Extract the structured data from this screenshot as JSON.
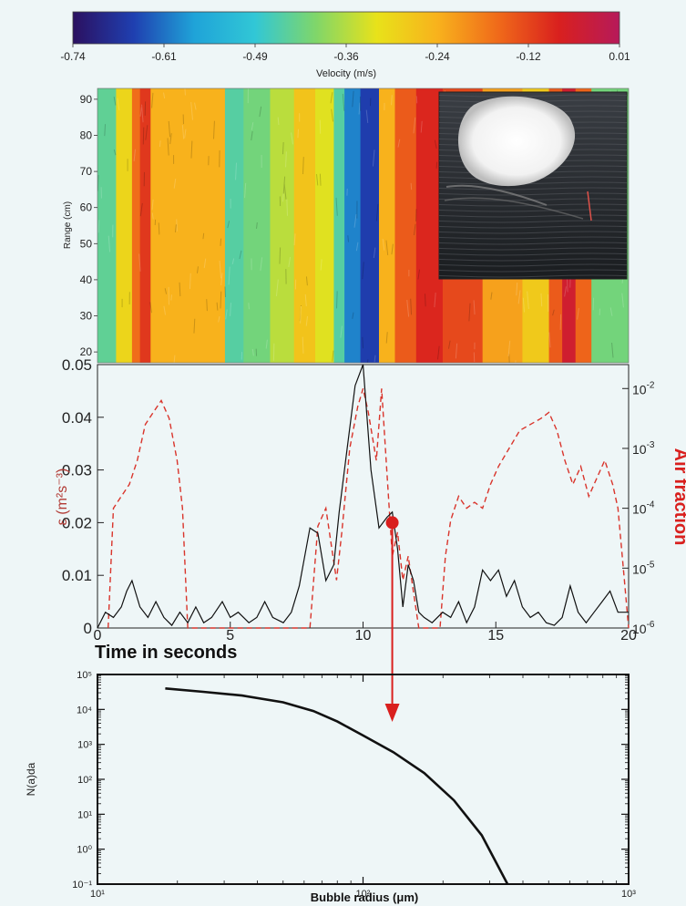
{
  "colorbar": {
    "title": "Velocity (m/s)",
    "tick_labels": [
      "-0.74",
      "-0.61",
      "-0.49",
      "-0.36",
      "-0.24",
      "-0.12",
      "0.01"
    ],
    "colors": [
      "#2b1060",
      "#1f3fb0",
      "#1fa3d8",
      "#31c7d6",
      "#7fd66a",
      "#e8e21a",
      "#f8b21c",
      "#f06a1a",
      "#d9201e",
      "#b61a5a"
    ]
  },
  "chart_data": [
    {
      "type": "heatmap",
      "title": "",
      "colorbar_label": "Velocity (m/s)",
      "xlabel": "",
      "ylabel": "Range (cm)",
      "xlim": [
        0,
        20
      ],
      "ylim": [
        17,
        93
      ],
      "y_ticks": [
        20,
        30,
        40,
        50,
        60,
        70,
        80,
        90
      ],
      "x_band_edges": [
        0,
        0.7,
        1.3,
        1.6,
        2.0,
        2.5,
        4.8,
        5.5,
        6.5,
        7.4,
        8.2,
        8.9,
        9.3,
        9.9,
        10.6,
        11.2,
        12.0,
        13.0,
        14.5,
        16.0,
        17.0,
        17.5,
        18.0,
        18.6,
        20.0
      ],
      "x_band_velocity": [
        -0.44,
        -0.3,
        -0.16,
        -0.1,
        -0.24,
        -0.24,
        -0.45,
        -0.42,
        -0.36,
        -0.27,
        -0.33,
        -0.45,
        -0.6,
        -0.66,
        -0.24,
        -0.14,
        -0.08,
        -0.12,
        -0.22,
        -0.28,
        -0.14,
        -0.05,
        -0.15,
        -0.42
      ],
      "inset": "photograph of breaking wave"
    },
    {
      "type": "line",
      "xlabel": "Time in seconds",
      "ylabel": "ε (m²s⁻³)",
      "y2label": "Air fraction",
      "xlim": [
        0,
        20
      ],
      "ylim": [
        0,
        0.05
      ],
      "y2lim_log10": [
        -6,
        -1.6
      ],
      "x_ticks": [
        0,
        5,
        10,
        15,
        20
      ],
      "y_ticks": [
        "0",
        "0.01",
        "0.02",
        "0.03",
        "0.04",
        "0.05"
      ],
      "y2_ticks": [
        -6,
        -5,
        -4,
        -3,
        -2
      ],
      "series": [
        {
          "color": "#111111",
          "dash": "solid",
          "axis": "left",
          "x": [
            0.0,
            0.3,
            0.6,
            0.9,
            1.1,
            1.3,
            1.6,
            1.9,
            2.2,
            2.5,
            2.8,
            3.1,
            3.4,
            3.7,
            4.0,
            4.3,
            4.7,
            5.0,
            5.3,
            5.7,
            6.0,
            6.3,
            6.6,
            7.0,
            7.3,
            7.6,
            8.0,
            8.3,
            8.6,
            8.9,
            9.1,
            9.4,
            9.7,
            10.0,
            10.3,
            10.6,
            10.9,
            11.1,
            11.3,
            11.5,
            11.7,
            11.9,
            12.1,
            12.3,
            12.6,
            13.0,
            13.3,
            13.6,
            13.9,
            14.2,
            14.5,
            14.8,
            15.1,
            15.4,
            15.7,
            16.0,
            16.3,
            16.6,
            16.9,
            17.2,
            17.5,
            17.8,
            18.1,
            18.4,
            18.7,
            19.0,
            19.3,
            19.6,
            20.0
          ],
          "y": [
            0.0,
            0.003,
            0.002,
            0.004,
            0.007,
            0.009,
            0.004,
            0.002,
            0.005,
            0.002,
            0.0005,
            0.003,
            0.001,
            0.004,
            0.001,
            0.002,
            0.005,
            0.002,
            0.003,
            0.001,
            0.002,
            0.005,
            0.002,
            0.001,
            0.003,
            0.008,
            0.019,
            0.018,
            0.009,
            0.012,
            0.022,
            0.034,
            0.046,
            0.05,
            0.03,
            0.019,
            0.021,
            0.022,
            0.015,
            0.004,
            0.012,
            0.009,
            0.003,
            0.002,
            0.001,
            0.003,
            0.002,
            0.005,
            0.001,
            0.004,
            0.011,
            0.009,
            0.011,
            0.006,
            0.009,
            0.004,
            0.002,
            0.003,
            0.001,
            0.0005,
            0.002,
            0.008,
            0.003,
            0.001,
            0.003,
            0.005,
            0.007,
            0.003,
            0.003
          ]
        },
        {
          "color": "#d9342b",
          "dash": "dashed",
          "axis": "right_log",
          "x": [
            0.4,
            0.6,
            0.9,
            1.2,
            1.5,
            1.8,
            2.1,
            2.4,
            2.7,
            3.0,
            3.2,
            3.4,
            8.0,
            8.3,
            8.6,
            8.8,
            9.0,
            9.2,
            9.5,
            9.8,
            10.0,
            10.2,
            10.5,
            10.7,
            10.9,
            11.1,
            11.3,
            11.5,
            11.7,
            11.9,
            12.1,
            12.9,
            13.1,
            13.3,
            13.6,
            13.9,
            14.2,
            14.5,
            14.8,
            15.1,
            15.5,
            15.9,
            16.3,
            16.7,
            17.0,
            17.3,
            17.6,
            17.9,
            18.2,
            18.5,
            18.8,
            19.1,
            19.4,
            19.6,
            19.8,
            20.0
          ],
          "log10_y": [
            -6.0,
            -4.0,
            -3.8,
            -3.6,
            -3.2,
            -2.6,
            -2.4,
            -2.2,
            -2.5,
            -3.2,
            -4.0,
            -6.0,
            -6.0,
            -4.3,
            -4.0,
            -4.6,
            -5.2,
            -4.4,
            -3.0,
            -2.3,
            -2.0,
            -2.4,
            -3.2,
            -2.0,
            -3.4,
            -4.8,
            -4.4,
            -5.2,
            -4.8,
            -5.4,
            -6.0,
            -6.0,
            -4.8,
            -4.2,
            -3.8,
            -4.0,
            -3.9,
            -4.0,
            -3.6,
            -3.3,
            -3.0,
            -2.7,
            -2.6,
            -2.5,
            -2.4,
            -2.7,
            -3.2,
            -3.6,
            -3.3,
            -3.8,
            -3.5,
            -3.2,
            -3.6,
            -4.0,
            -5.0,
            -6.0
          ]
        }
      ],
      "marker": {
        "x": 11.1,
        "y": 0.02,
        "color": "#d91e1e"
      }
    },
    {
      "type": "line",
      "xlabel": "Bubble radius (μm)",
      "ylabel": "N(a)da",
      "x_scale": "log",
      "y_scale": "log",
      "xlim": [
        10,
        1000
      ],
      "ylim": [
        0.1,
        100000
      ],
      "x_tick_labels": [
        "10¹",
        "10²",
        "10³"
      ],
      "y_tick_labels": [
        "10⁻¹",
        "10⁰",
        "10¹",
        "10²",
        "10³",
        "10⁴",
        "10⁵"
      ],
      "series": [
        {
          "color": "#111111",
          "x": [
            18,
            25,
            35,
            50,
            65,
            80,
            100,
            130,
            170,
            220,
            280,
            350
          ],
          "y": [
            40000,
            32000,
            25000,
            16000,
            9000,
            4500,
            1800,
            600,
            150,
            25,
            2.5,
            0.1
          ]
        }
      ]
    }
  ]
}
